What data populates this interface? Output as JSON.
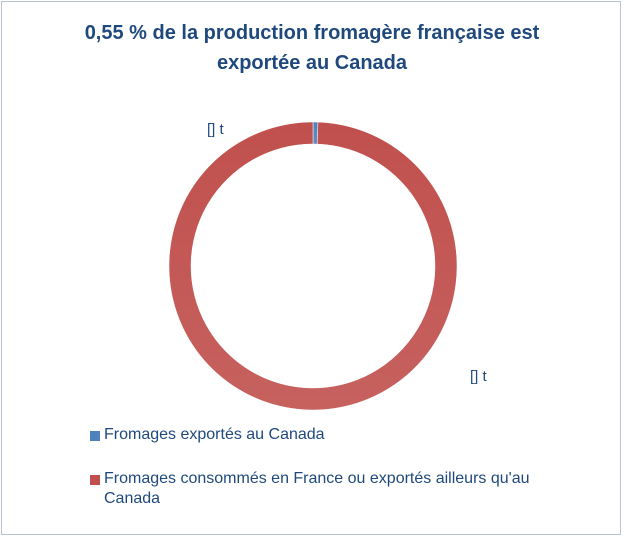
{
  "chart_data": {
    "type": "pie",
    "donut": true,
    "title_line1": "0,55 % de la production fromagère française est",
    "title_line2": "exportée au Canada",
    "series": [
      {
        "name": "Fromages exportés au Canada",
        "value": 0.55,
        "color": "#4f81bd",
        "data_label": "[] t"
      },
      {
        "name": "Fromages consommés en France ou exportés ailleurs qu'au Canada",
        "value": 99.45,
        "color": "#c0504d",
        "data_label": "[] t"
      }
    ],
    "legend_position": "bottom-left"
  }
}
